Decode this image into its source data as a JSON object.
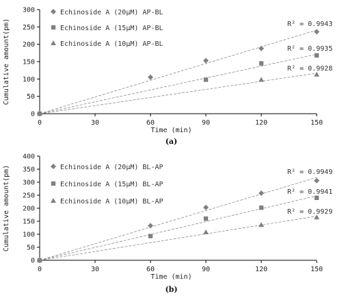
{
  "chart_data": [
    {
      "type": "scatter",
      "panel_label": "(a)",
      "xlabel": "Time (min)",
      "ylabel": "Cumulative amount(pm)",
      "xlim": [
        0,
        150
      ],
      "ylim": [
        0,
        300
      ],
      "xticks": [
        0,
        30,
        60,
        90,
        120,
        150
      ],
      "yticks": [
        0,
        50,
        100,
        150,
        200,
        250,
        300
      ],
      "legend_position": "top-left",
      "trendlines": true,
      "series": [
        {
          "name": "Echinoside A (20μM) AP-BL",
          "marker": "diamond",
          "x": [
            0,
            60,
            90,
            120,
            150
          ],
          "y": [
            0,
            105,
            153,
            188,
            236
          ],
          "r2_text": "R² = 0.9943"
        },
        {
          "name": "Echinoside A (15μM) AP-BL",
          "marker": "square",
          "x": [
            0,
            90,
            120,
            150
          ],
          "y": [
            0,
            98,
            145,
            168
          ],
          "r2_text": "R² = 0.9935"
        },
        {
          "name": "Echinoside A (10μM) AP-BL",
          "marker": "triangle",
          "x": [
            0,
            120,
            150
          ],
          "y": [
            0,
            98,
            113
          ],
          "r2_text": "R² = 0.9928"
        }
      ]
    },
    {
      "type": "scatter",
      "panel_label": "(b)",
      "xlabel": "Time (min)",
      "ylabel": "Cumulative amount(pm)",
      "xlim": [
        0,
        150
      ],
      "ylim": [
        0,
        400
      ],
      "xticks": [
        0,
        30,
        60,
        90,
        120,
        150
      ],
      "yticks": [
        0,
        50,
        100,
        150,
        200,
        250,
        300,
        350,
        400
      ],
      "legend_position": "top-left",
      "trendlines": true,
      "series": [
        {
          "name": "Echinoside A (20μM) BL-AP",
          "marker": "diamond",
          "x": [
            0,
            60,
            90,
            120,
            150
          ],
          "y": [
            0,
            133,
            203,
            258,
            306
          ],
          "r2_text": "R² = 0.9949"
        },
        {
          "name": "Echinoside A (15μM) BL-AP",
          "marker": "square",
          "x": [
            0,
            60,
            90,
            120,
            150
          ],
          "y": [
            0,
            93,
            160,
            202,
            240
          ],
          "r2_text": "R² = 0.9941"
        },
        {
          "name": "Echinoside A (10μM) BL-AP",
          "marker": "triangle",
          "x": [
            0,
            90,
            120,
            150
          ],
          "y": [
            0,
            108,
            136,
            165
          ],
          "r2_text": "R² = 0.9929"
        }
      ]
    }
  ],
  "colors": {
    "marker": "#808080",
    "trendline": "#8a8a8a",
    "axis": "#000000",
    "text": "#222222"
  }
}
